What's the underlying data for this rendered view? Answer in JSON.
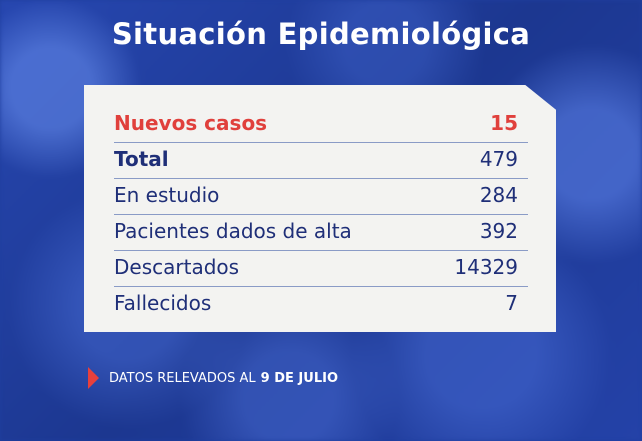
{
  "title": "Situación Epidemiológica",
  "rows": [
    {
      "label": "Nuevos casos",
      "value": "15"
    },
    {
      "label": "Total",
      "value": "479"
    },
    {
      "label": "En estudio",
      "value": "284"
    },
    {
      "label": "Pacientes dados de alta",
      "value": "392"
    },
    {
      "label": "Descartados",
      "value": "14329"
    },
    {
      "label": "Fallecidos",
      "value": "7"
    }
  ],
  "footer": {
    "prefix": "DATOS RELEVADOS AL",
    "date": "9 DE JULIO"
  },
  "colors": {
    "background": "#1f3f9e",
    "highlight": "#e0403c",
    "text": "#1f2f78",
    "card": "#f3f3f1"
  }
}
